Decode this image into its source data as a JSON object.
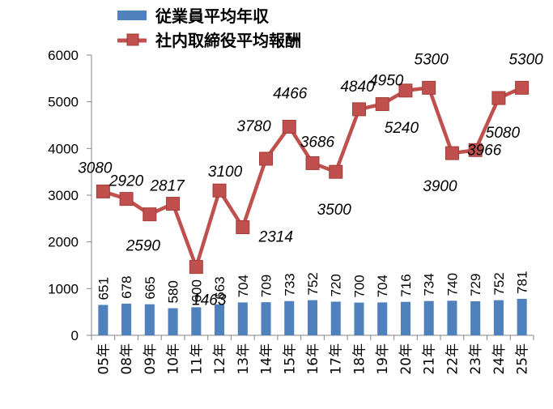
{
  "chart_data": {
    "type": "bar+line",
    "categories": [
      "05年",
      "08年",
      "09年",
      "10年",
      "11年",
      "12年",
      "13年",
      "14年",
      "15年",
      "16年",
      "17年",
      "18年",
      "19年",
      "20年",
      "21年",
      "22年",
      "23年",
      "24年",
      "25年"
    ],
    "series": [
      {
        "name": "従業員平均年収",
        "type": "bar",
        "color": "#4F81BD",
        "values": [
          651,
          678,
          665,
          580,
          600,
          663,
          704,
          709,
          733,
          752,
          720,
          700,
          704,
          716,
          734,
          740,
          729,
          752,
          781
        ]
      },
      {
        "name": "社内取締役平均報酬",
        "type": "line",
        "color": "#C0504D",
        "values": [
          3080,
          2920,
          2590,
          2817,
          1463,
          3100,
          2314,
          3780,
          4466,
          3686,
          3500,
          4840,
          4950,
          5240,
          5300,
          3900,
          3966,
          5080,
          5300
        ]
      }
    ],
    "ylim": [
      0,
      6000
    ],
    "yticks": [
      "0",
      "1000",
      "2000",
      "3000",
      "4000",
      "5000",
      "6000"
    ],
    "legend_position": "top",
    "grid": false
  }
}
